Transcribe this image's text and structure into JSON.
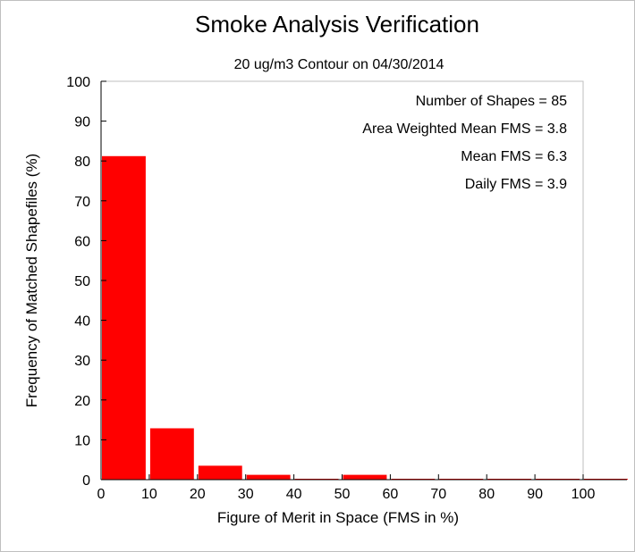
{
  "chart_data": {
    "type": "bar",
    "title": "Smoke Analysis Verification",
    "subtitle": "20 ug/m3 Contour on 04/30/2014",
    "xlabel": "Figure of Merit in Space (FMS in %)",
    "ylabel": "Frequency of Matched Shapefiles (%)",
    "xlim": [
      0,
      110
    ],
    "ylim": [
      0,
      100
    ],
    "x_ticks": [
      "0",
      "10",
      "20",
      "30",
      "40",
      "50",
      "60",
      "70",
      "80",
      "90",
      "100"
    ],
    "y_ticks": [
      "0",
      "10",
      "20",
      "30",
      "40",
      "50",
      "60",
      "70",
      "80",
      "90",
      "100"
    ],
    "bins": [
      {
        "from": 0,
        "to": 10,
        "value": 81.2
      },
      {
        "from": 10,
        "to": 20,
        "value": 12.9
      },
      {
        "from": 20,
        "to": 30,
        "value": 3.5
      },
      {
        "from": 30,
        "to": 40,
        "value": 1.2
      },
      {
        "from": 40,
        "to": 50,
        "value": 0
      },
      {
        "from": 50,
        "to": 60,
        "value": 1.2
      },
      {
        "from": 60,
        "to": 70,
        "value": 0
      },
      {
        "from": 70,
        "to": 80,
        "value": 0
      },
      {
        "from": 80,
        "to": 90,
        "value": 0
      },
      {
        "from": 90,
        "to": 100,
        "value": 0
      },
      {
        "from": 100,
        "to": 110,
        "value": 0
      }
    ],
    "bar_color": "#ff0000",
    "annotations": [
      "Number of Shapes = 85",
      "Area Weighted Mean FMS = 3.8",
      "Mean FMS = 6.3",
      "Daily FMS = 3.9"
    ],
    "grid": false
  }
}
